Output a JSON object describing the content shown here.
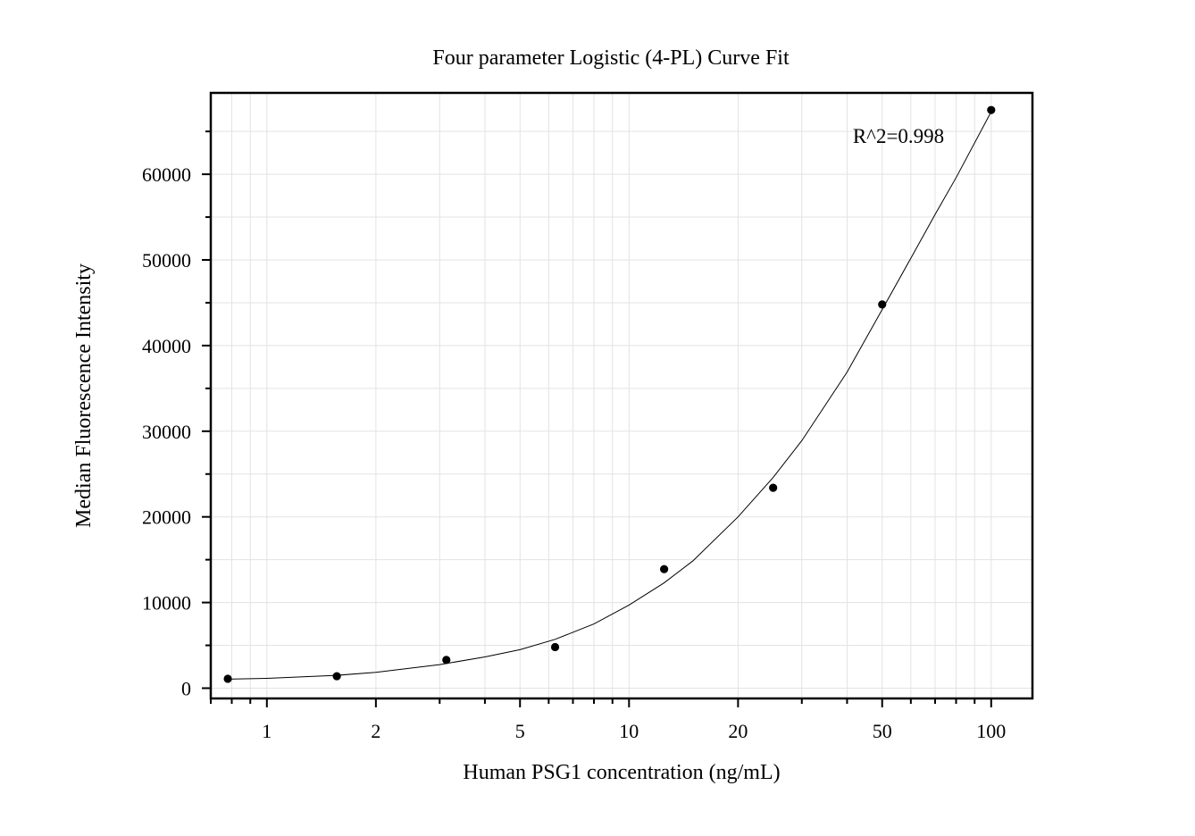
{
  "chart_data": {
    "type": "scatter",
    "title": "Four parameter Logistic (4-PL) Curve Fit",
    "xlabel": "Human PSG1 concentration (ng/mL)",
    "ylabel": "Median Fluorescence Intensity",
    "xscale": "log",
    "xlim": [
      0.7,
      130
    ],
    "ylim": [
      -1200,
      69500
    ],
    "grid": true,
    "x_ticks": [
      1,
      2,
      5,
      10,
      20,
      50,
      100
    ],
    "x_tick_labels": [
      "1",
      "2",
      "5",
      "10",
      "20",
      "50",
      "100"
    ],
    "y_ticks": [
      0,
      10000,
      20000,
      30000,
      40000,
      50000,
      60000
    ],
    "y_tick_labels": [
      "0",
      "10000",
      "20000",
      "30000",
      "40000",
      "50000",
      "60000"
    ],
    "annotation": "R^2=0.998",
    "series": [
      {
        "type": "scatter",
        "x": [
          0.78,
          1.56,
          3.13,
          6.25,
          12.5,
          25,
          50,
          100
        ],
        "y": [
          1100,
          1400,
          3300,
          4800,
          13900,
          23400,
          44800,
          67500
        ]
      },
      {
        "type": "line",
        "x": [
          0.78,
          1,
          1.56,
          2,
          3,
          4,
          5,
          6.25,
          8,
          10,
          12.5,
          15,
          20,
          25,
          30,
          40,
          50,
          60,
          70,
          80,
          100
        ],
        "y": [
          1050,
          1150,
          1500,
          1850,
          2750,
          3650,
          4500,
          5700,
          7500,
          9700,
          12300,
          14850,
          20000,
          24600,
          28900,
          36900,
          44200,
          50200,
          55300,
          59600,
          67300
        ]
      }
    ]
  }
}
